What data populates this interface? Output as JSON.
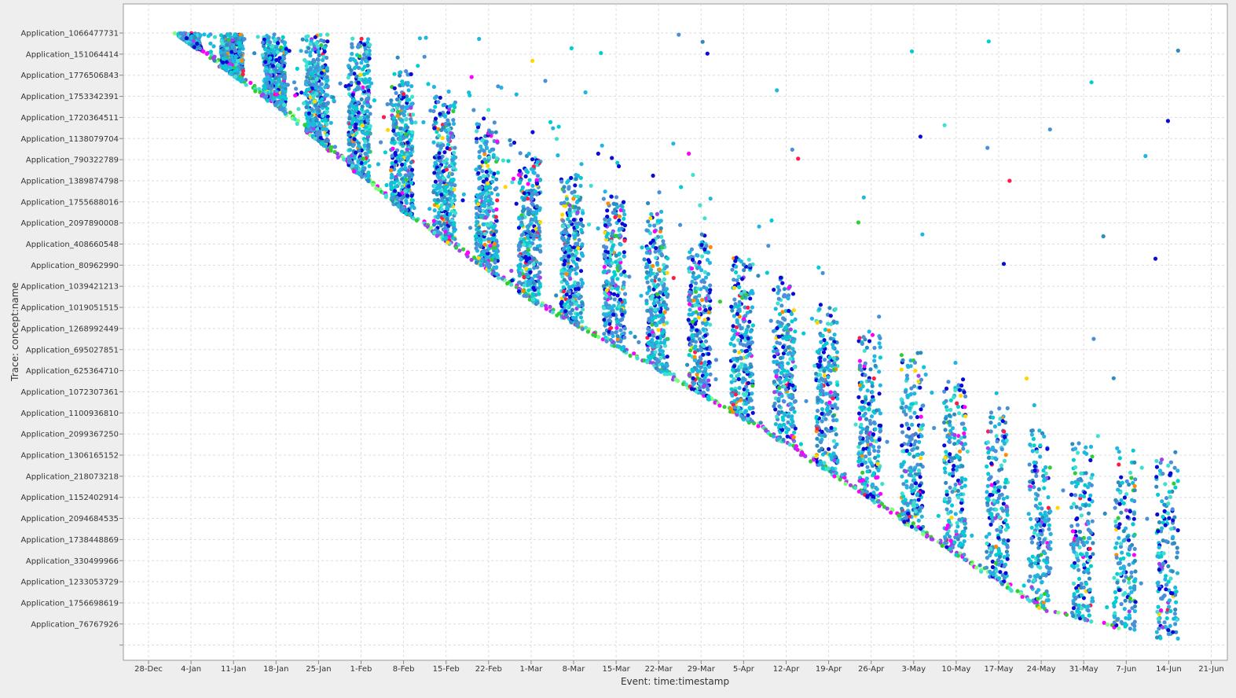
{
  "chart_data": {
    "type": "scatter",
    "title": "",
    "xlabel": "Event: time:timestamp",
    "ylabel": "Trace: concept:name",
    "x_tick_labels": [
      "28-Dec",
      "4-Jan",
      "11-Jan",
      "18-Jan",
      "25-Jan",
      "1-Feb",
      "8-Feb",
      "15-Feb",
      "22-Feb",
      "1-Mar",
      "8-Mar",
      "15-Mar",
      "22-Mar",
      "29-Mar",
      "5-Apr",
      "12-Apr",
      "19-Apr",
      "26-Apr",
      "3-May",
      "10-May",
      "17-May",
      "24-May",
      "31-May",
      "7-Jun",
      "14-Jun",
      "21-Jun"
    ],
    "xlim": [
      "25-Dec",
      "25-Jun"
    ],
    "y_tick_labels": [
      "Application_1066477731",
      "Application_151064414",
      "Application_1776506843",
      "Application_1753342391",
      "Application_1720364511",
      "Application_1138079704",
      "Application_790322789",
      "Application_1389874798",
      "Application_1755688016",
      "Application_2097890008",
      "Application_408660548",
      "Application_80962990",
      "Application_1039421213",
      "Application_1019051515",
      "Application_1268992449",
      "Application_695027851",
      "Application_625364710",
      "Application_1072307361",
      "Application_1100936810",
      "Application_2099367250",
      "Application_1306165152",
      "Application_218073218",
      "Application_1152402914",
      "Application_2094684535",
      "Application_1738448869",
      "Application_330499966",
      "Application_1233053729",
      "Application_1756698619",
      "Application_76767926"
    ],
    "grid": true,
    "legend": "none",
    "series_colors": [
      "#00ced1",
      "#4a90d9",
      "#1fb6e0",
      "#0a0ad8",
      "#a040f0",
      "#ff1a4a",
      "#ff8c00",
      "#32cd32",
      "#ffd700",
      "#ff00ff",
      "#2e8bc0",
      "#40e0d0"
    ],
    "trace_start_envelope": [
      {
        "x": "1-Jan",
        "trace_index": 0
      },
      {
        "x": "18-Jan",
        "trace_index": 3.5
      },
      {
        "x": "8-Feb",
        "trace_index": 8.5
      },
      {
        "x": "1-Mar",
        "trace_index": 12.7
      },
      {
        "x": "22-Mar",
        "trace_index": 16
      },
      {
        "x": "12-Apr",
        "trace_index": 19.5
      },
      {
        "x": "3-May",
        "trace_index": 23.5
      },
      {
        "x": "24-May",
        "trace_index": 27.3
      },
      {
        "x": "14-Jun",
        "trace_index": 28.8
      }
    ],
    "activity_columns": [
      "4-Jan",
      "11-Jan",
      "18-Jan",
      "25-Jan",
      "1-Feb",
      "8-Feb",
      "15-Feb",
      "22-Feb",
      "1-Mar",
      "8-Mar",
      "15-Mar",
      "22-Mar",
      "29-Mar",
      "5-Apr",
      "12-Apr",
      "19-Apr",
      "26-Apr",
      "3-May",
      "10-May",
      "17-May",
      "24-May",
      "31-May",
      "7-Jun",
      "14-Jun"
    ]
  }
}
